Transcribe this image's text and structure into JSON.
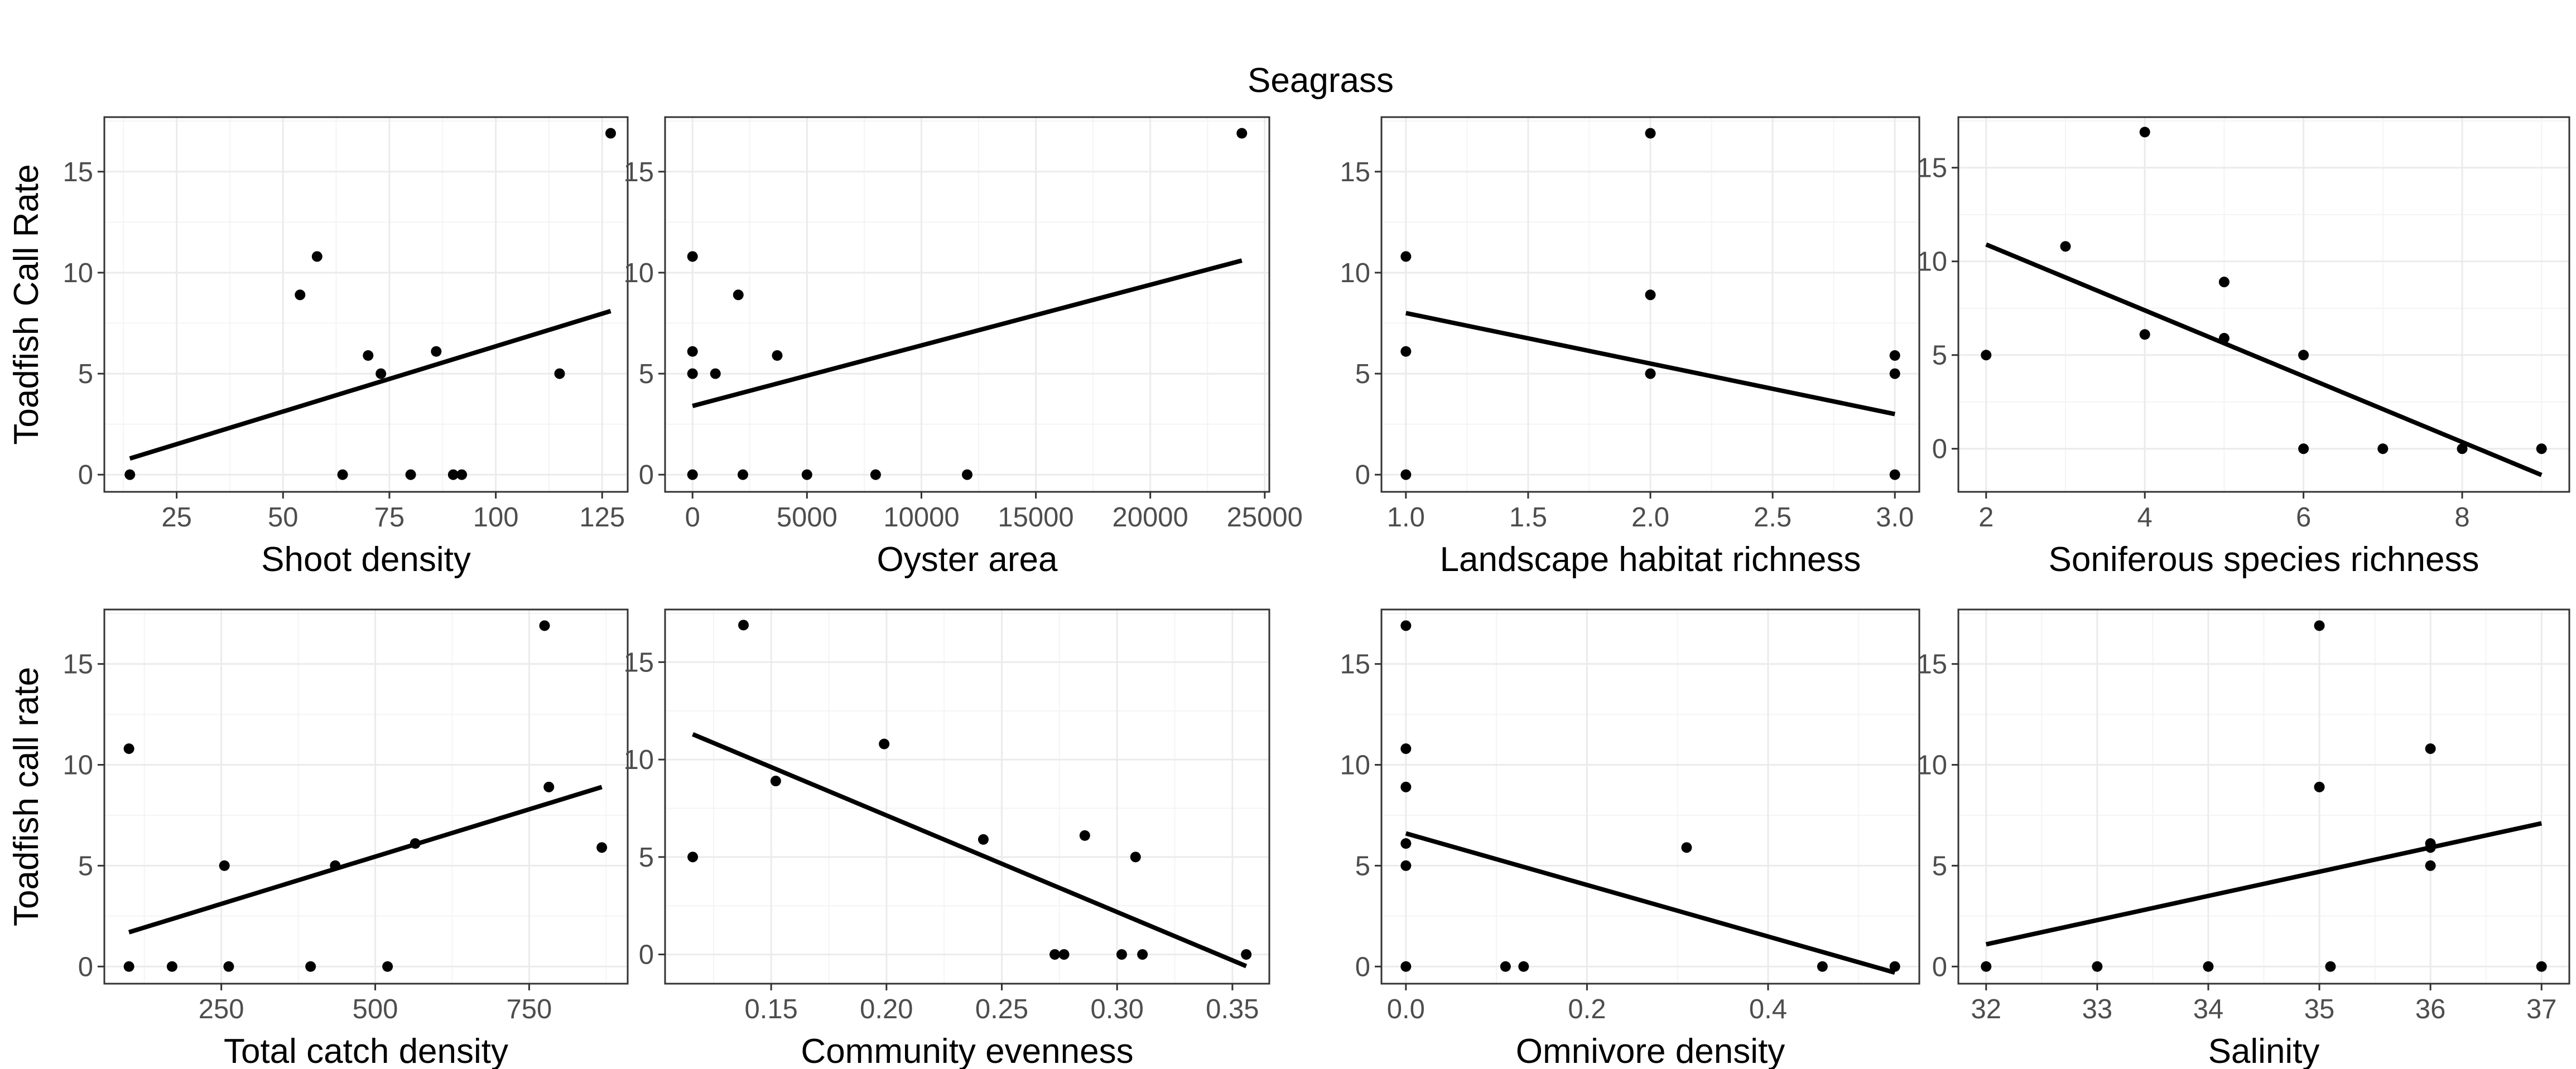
{
  "figure": {
    "title": "Seagrass"
  },
  "colors": {
    "background": "#ffffff",
    "panel_border": "#333333",
    "grid_major": "#ebebeb",
    "grid_minor": "#f4f4f4",
    "points": "#000000",
    "fit_line": "#000000",
    "tick_text": "#4d4d4d",
    "label_text": "#000000"
  },
  "chart_data": [
    {
      "type": "scatter",
      "xlabel": "Shoot density",
      "ylabel": "Toadfish Call Rate",
      "xlim": [
        8,
        131
      ],
      "ylim": [
        -0.85,
        17.7
      ],
      "xticks": [
        25,
        50,
        75,
        100,
        125
      ],
      "xtick_labels": [
        "25",
        "50",
        "75",
        "100",
        "125"
      ],
      "yticks": [
        0,
        5,
        10,
        15
      ],
      "ytick_labels": [
        "0",
        "5",
        "10",
        "15"
      ],
      "points": [
        [
          14,
          0
        ],
        [
          54,
          8.9
        ],
        [
          58,
          10.8
        ],
        [
          64,
          0
        ],
        [
          70,
          5.9
        ],
        [
          73,
          5
        ],
        [
          80,
          0
        ],
        [
          86,
          6.1
        ],
        [
          90,
          0
        ],
        [
          92,
          0
        ],
        [
          115,
          5
        ],
        [
          127,
          16.9
        ]
      ],
      "trend": [
        [
          14,
          0.8
        ],
        [
          127,
          8.1
        ]
      ]
    },
    {
      "type": "scatter",
      "xlabel": "Oyster area",
      "ylabel": "",
      "xlim": [
        -1200,
        25200
      ],
      "ylim": [
        -0.85,
        17.7
      ],
      "xticks": [
        0,
        5000,
        10000,
        15000,
        20000,
        25000
      ],
      "xtick_labels": [
        "0",
        "5000",
        "10000",
        "15000",
        "20000",
        "25000"
      ],
      "yticks": [
        0,
        5,
        10,
        15
      ],
      "ytick_labels": [
        "0",
        "5",
        "10",
        "15"
      ],
      "points": [
        [
          0,
          10.8
        ],
        [
          0,
          6.1
        ],
        [
          0,
          5
        ],
        [
          0,
          0
        ],
        [
          1000,
          5
        ],
        [
          2000,
          8.9
        ],
        [
          2200,
          0
        ],
        [
          3700,
          5.9
        ],
        [
          5000,
          0
        ],
        [
          8000,
          0
        ],
        [
          12000,
          0
        ],
        [
          24000,
          16.9
        ]
      ],
      "trend": [
        [
          0,
          3.4
        ],
        [
          24000,
          10.6
        ]
      ]
    },
    {
      "type": "scatter",
      "xlabel": "Landscape habitat richness",
      "ylabel": "",
      "xlim": [
        0.9,
        3.1
      ],
      "ylim": [
        -0.85,
        17.7
      ],
      "xticks": [
        1.0,
        1.5,
        2.0,
        2.5,
        3.0
      ],
      "xtick_labels": [
        "1.0",
        "1.5",
        "2.0",
        "2.5",
        "3.0"
      ],
      "yticks": [
        0,
        5,
        10,
        15
      ],
      "ytick_labels": [
        "0",
        "5",
        "10",
        "15"
      ],
      "points": [
        [
          1,
          10.8
        ],
        [
          1,
          6.1
        ],
        [
          1,
          0
        ],
        [
          2,
          16.9
        ],
        [
          2,
          8.9
        ],
        [
          2,
          5
        ],
        [
          3,
          5.9
        ],
        [
          3,
          5
        ],
        [
          3,
          0
        ]
      ],
      "trend": [
        [
          1,
          8.0
        ],
        [
          3,
          3.0
        ]
      ]
    },
    {
      "type": "scatter",
      "xlabel": "Soniferous species richness",
      "ylabel": "",
      "xlim": [
        1.65,
        9.35
      ],
      "ylim": [
        -2.3,
        17.7
      ],
      "xticks": [
        2,
        4,
        6,
        8
      ],
      "xtick_labels": [
        "2",
        "4",
        "6",
        "8"
      ],
      "yticks": [
        0,
        5,
        10,
        15
      ],
      "ytick_labels": [
        "0",
        "5",
        "10",
        "15"
      ],
      "points": [
        [
          2,
          5
        ],
        [
          3,
          10.8
        ],
        [
          4,
          16.9
        ],
        [
          4,
          6.1
        ],
        [
          5,
          8.9
        ],
        [
          5,
          5.9
        ],
        [
          6,
          5
        ],
        [
          6,
          0
        ],
        [
          7,
          0
        ],
        [
          8,
          0
        ],
        [
          9,
          0
        ]
      ],
      "trend": [
        [
          2,
          10.9
        ],
        [
          9,
          -1.4
        ]
      ]
    },
    {
      "type": "scatter",
      "xlabel": "Total catch density",
      "ylabel": "Toadfish call rate",
      "xlim": [
        60,
        910
      ],
      "ylim": [
        -0.85,
        17.7
      ],
      "xticks": [
        250,
        500,
        750
      ],
      "xtick_labels": [
        "250",
        "500",
        "750"
      ],
      "yticks": [
        0,
        5,
        10,
        15
      ],
      "ytick_labels": [
        "0",
        "5",
        "10",
        "15"
      ],
      "points": [
        [
          100,
          10.8
        ],
        [
          100,
          0
        ],
        [
          170,
          0
        ],
        [
          255,
          5
        ],
        [
          262,
          0
        ],
        [
          395,
          0
        ],
        [
          435,
          5
        ],
        [
          520,
          0
        ],
        [
          565,
          6.1
        ],
        [
          775,
          16.9
        ],
        [
          782,
          8.9
        ],
        [
          868,
          5.9
        ]
      ],
      "trend": [
        [
          100,
          1.7
        ],
        [
          868,
          8.9
        ]
      ]
    },
    {
      "type": "scatter",
      "xlabel": "Community evenness",
      "ylabel": "",
      "xlim": [
        0.104,
        0.366
      ],
      "ylim": [
        -1.5,
        17.7
      ],
      "xticks": [
        0.15,
        0.2,
        0.25,
        0.3,
        0.35
      ],
      "xtick_labels": [
        "0.15",
        "0.20",
        "0.25",
        "0.30",
        "0.35"
      ],
      "yticks": [
        0,
        5,
        10,
        15
      ],
      "ytick_labels": [
        "0",
        "5",
        "10",
        "15"
      ],
      "points": [
        [
          0.116,
          5
        ],
        [
          0.138,
          16.9
        ],
        [
          0.152,
          8.9
        ],
        [
          0.199,
          10.8
        ],
        [
          0.242,
          5.9
        ],
        [
          0.273,
          0
        ],
        [
          0.277,
          0
        ],
        [
          0.286,
          6.1
        ],
        [
          0.302,
          0
        ],
        [
          0.308,
          5
        ],
        [
          0.311,
          0
        ],
        [
          0.356,
          0
        ]
      ],
      "trend": [
        [
          0.116,
          11.3
        ],
        [
          0.356,
          -0.6
        ]
      ]
    },
    {
      "type": "scatter",
      "xlabel": "Omnivore density",
      "ylabel": "",
      "xlim": [
        -0.027,
        0.567
      ],
      "ylim": [
        -0.85,
        17.7
      ],
      "xticks": [
        0.0,
        0.2,
        0.4
      ],
      "xtick_labels": [
        "0.0",
        "0.2",
        "0.4"
      ],
      "yticks": [
        0,
        5,
        10,
        15
      ],
      "ytick_labels": [
        "0",
        "5",
        "10",
        "15"
      ],
      "points": [
        [
          0,
          16.9
        ],
        [
          0,
          10.8
        ],
        [
          0,
          8.9
        ],
        [
          0,
          6.1
        ],
        [
          0,
          5
        ],
        [
          0,
          0
        ],
        [
          0.11,
          0
        ],
        [
          0.13,
          0
        ],
        [
          0.31,
          5.9
        ],
        [
          0.46,
          0
        ],
        [
          0.54,
          0
        ]
      ],
      "trend": [
        [
          0,
          6.6
        ],
        [
          0.54,
          -0.3
        ]
      ]
    },
    {
      "type": "scatter",
      "xlabel": "Salinity",
      "ylabel": "",
      "xlim": [
        31.75,
        37.25
      ],
      "ylim": [
        -0.85,
        17.7
      ],
      "xticks": [
        32,
        33,
        34,
        35,
        36,
        37
      ],
      "xtick_labels": [
        "32",
        "33",
        "34",
        "35",
        "36",
        "37"
      ],
      "yticks": [
        0,
        5,
        10,
        15
      ],
      "ytick_labels": [
        "0",
        "5",
        "10",
        "15"
      ],
      "points": [
        [
          32,
          0
        ],
        [
          33,
          0
        ],
        [
          34,
          0
        ],
        [
          35,
          16.9
        ],
        [
          35,
          8.9
        ],
        [
          35.1,
          0
        ],
        [
          36,
          10.8
        ],
        [
          36,
          6.1
        ],
        [
          36,
          5.9
        ],
        [
          36,
          5
        ],
        [
          37,
          0
        ]
      ],
      "trend": [
        [
          32,
          1.1
        ],
        [
          37,
          7.1
        ]
      ]
    }
  ]
}
